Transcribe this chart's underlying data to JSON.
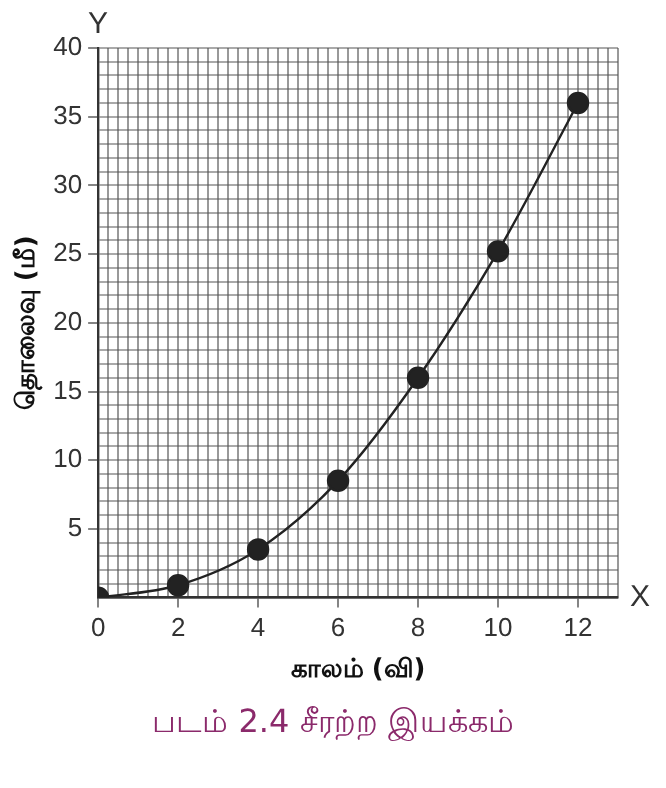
{
  "chart_data": {
    "type": "line",
    "title": "படம் 2.4  சீரற்ற இயக்கம்",
    "xlabel": "காலம் (வி)",
    "ylabel": "தொலைவு (மீ)",
    "annotations": [
      "Y",
      "X"
    ],
    "x": [
      0,
      2,
      4,
      6,
      8,
      10,
      12
    ],
    "series": [
      {
        "color": "#222222",
        "values": [
          0,
          0.9,
          3.5,
          8.5,
          16,
          25.2,
          36
        ]
      }
    ],
    "marker": "circle",
    "line_style": "solid",
    "grid": true,
    "legend": false,
    "xlim": [
      0,
      13
    ],
    "ylim": [
      0,
      40
    ],
    "xticks": [
      0,
      {
        "value": 0.25,
        "label": null
      },
      {
        "value": 0.5,
        "label": null
      },
      {
        "value": 0.75,
        "label": null
      },
      {
        "value": 1,
        "label": null
      },
      {
        "value": 1.25,
        "label": null
      },
      {
        "value": 1.5,
        "label": null
      },
      {
        "value": 1.75,
        "label": null
      },
      2,
      {
        "value": 2.25,
        "label": null
      },
      {
        "value": 2.5,
        "label": null
      },
      {
        "value": 2.75,
        "label": null
      },
      {
        "value": 3,
        "label": null
      },
      {
        "value": 3.25,
        "label": null
      },
      {
        "value": 3.5,
        "label": null
      },
      {
        "value": 3.75,
        "label": null
      },
      4,
      {
        "value": 4.25,
        "label": null
      },
      {
        "value": 4.5,
        "label": null
      },
      {
        "value": 4.75,
        "label": null
      },
      {
        "value": 5,
        "label": null
      },
      {
        "value": 5.25,
        "label": null
      },
      {
        "value": 5.5,
        "label": null
      },
      {
        "value": 5.75,
        "label": null
      },
      6,
      {
        "value": 6.25,
        "label": null
      },
      {
        "value": 6.5,
        "label": null
      },
      {
        "value": 6.75,
        "label": null
      },
      {
        "value": 7,
        "label": null
      },
      {
        "value": 7.25,
        "label": null
      },
      {
        "value": 7.5,
        "label": null
      },
      {
        "value": 7.75,
        "label": null
      },
      8,
      {
        "value": 8.25,
        "label": null
      },
      {
        "value": 8.5,
        "label": null
      },
      {
        "value": 8.75,
        "label": null
      },
      {
        "value": 9,
        "label": null
      },
      {
        "value": 9.25,
        "label": null
      },
      {
        "value": 9.5,
        "label": null
      },
      {
        "value": 9.75,
        "label": null
      },
      10,
      {
        "value": 10.25,
        "label": null
      },
      {
        "value": 10.5,
        "label": null
      },
      {
        "value": 10.75,
        "label": null
      },
      {
        "value": 11,
        "label": null
      },
      {
        "value": 11.25,
        "label": null
      },
      {
        "value": 11.5,
        "label": null
      },
      {
        "value": 11.75,
        "label": null
      },
      12,
      {
        "value": 12.25,
        "label": null
      },
      {
        "value": 12.5,
        "label": null
      },
      {
        "value": 12.75,
        "label": null
      },
      {
        "value": 13,
        "label": null
      }
    ],
    "yticks": [
      {
        "value": 0,
        "label": null
      },
      {
        "value": 1,
        "label": null
      },
      {
        "value": 2,
        "label": null
      },
      {
        "value": 3,
        "label": null
      },
      {
        "value": 4,
        "label": null
      },
      5,
      {
        "value": 6,
        "label": null
      },
      {
        "value": 7,
        "label": null
      },
      {
        "value": 8,
        "label": null
      },
      {
        "value": 9,
        "label": null
      },
      10,
      {
        "value": 11,
        "label": null
      },
      {
        "value": 12,
        "label": null
      },
      {
        "value": 13,
        "label": null
      },
      {
        "value": 14,
        "label": null
      },
      15,
      {
        "value": 16,
        "label": null
      },
      {
        "value": 17,
        "label": null
      },
      {
        "value": 18,
        "label": null
      },
      {
        "value": 19,
        "label": null
      },
      20,
      {
        "value": 21,
        "label": null
      },
      {
        "value": 22,
        "label": null
      },
      {
        "value": 23,
        "label": null
      },
      {
        "value": 24,
        "label": null
      },
      25,
      {
        "value": 26,
        "label": null
      },
      {
        "value": 27,
        "label": null
      },
      {
        "value": 28,
        "label": null
      },
      {
        "value": 29,
        "label": null
      },
      30,
      {
        "value": 31,
        "label": null
      },
      {
        "value": 32,
        "label": null
      },
      {
        "value": 33,
        "label": null
      },
      {
        "value": 34,
        "label": null
      },
      35,
      {
        "value": 36,
        "label": null
      },
      {
        "value": 37,
        "label": null
      },
      {
        "value": 38,
        "label": null
      },
      {
        "value": 39,
        "label": null
      },
      40
    ]
  }
}
